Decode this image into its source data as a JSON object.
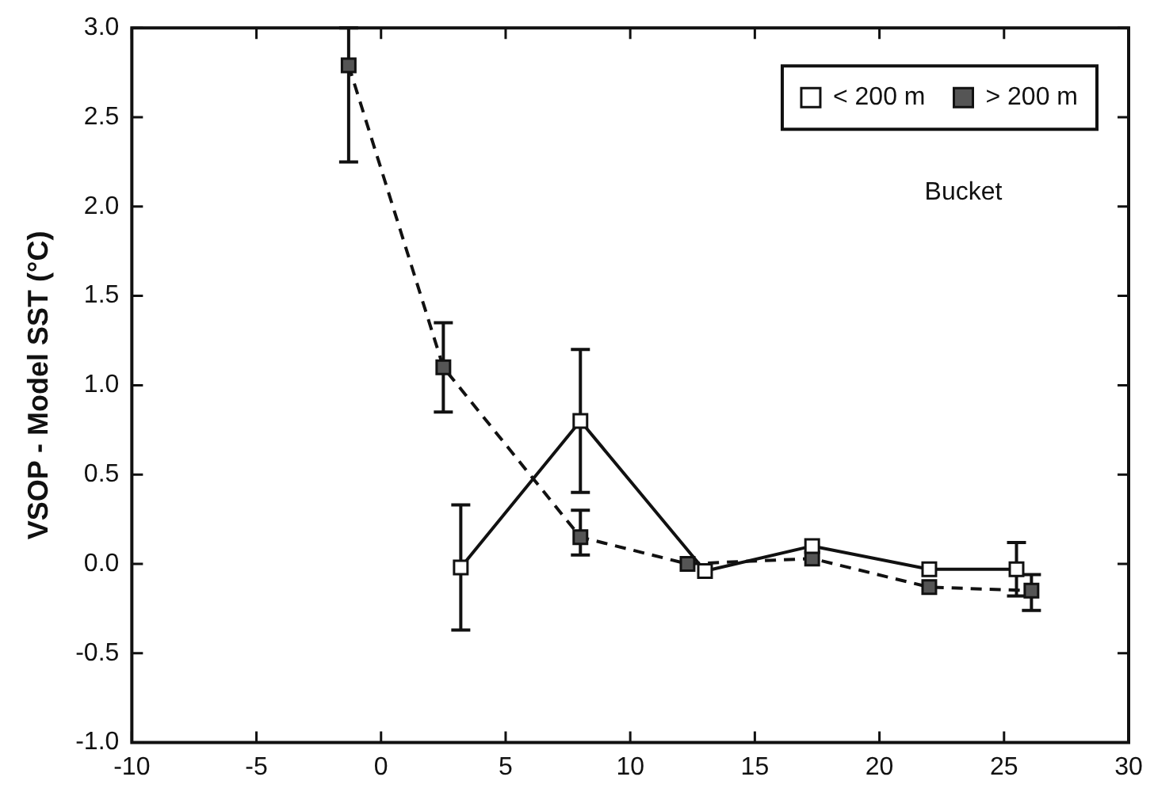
{
  "chart_data": {
    "type": "line",
    "ylabel": "VSOP - Model SST (°C)",
    "xlim": [
      -10,
      30
    ],
    "xticks": [
      -10,
      -5,
      0,
      5,
      10,
      15,
      20,
      25,
      30
    ],
    "ylim": [
      -1,
      3
    ],
    "yticks": [
      {
        "value": -1,
        "label": "-1.0"
      },
      -0.5,
      {
        "value": 0,
        "label": "0.0"
      },
      0.5,
      {
        "value": 1,
        "label": "1.0"
      },
      1.5,
      {
        "value": 2,
        "label": "2.0"
      },
      2.5,
      {
        "value": 3,
        "label": "3.0"
      }
    ],
    "grid": false,
    "legend": "top right",
    "marker": "square",
    "annotations": [
      "Bucket"
    ],
    "series": [
      {
        "name": "< 200 m",
        "color": "#ffffff",
        "line_style": "solid",
        "x": [
          3.2,
          8.0,
          13.0,
          17.3,
          22.0,
          25.5
        ],
        "values": [
          -0.02,
          0.8,
          -0.04,
          0.1,
          -0.03,
          -0.03
        ],
        "errors": [
          0.35,
          0.4,
          null,
          null,
          null,
          0.15
        ]
      },
      {
        "name": "> 200 m",
        "color": "#555555",
        "line_style": "dashed",
        "x": [
          -1.3,
          2.5,
          8.0,
          12.3,
          17.3,
          22.0,
          26.1
        ],
        "values": [
          2.79,
          1.1,
          0.15,
          0.0,
          0.03,
          -0.13,
          -0.15
        ],
        "errors": [
          [
            2.25,
            3.0
          ],
          0.25,
          [
            0.05,
            0.3
          ],
          null,
          null,
          null,
          [
            -0.26,
            -0.06
          ]
        ]
      }
    ]
  }
}
